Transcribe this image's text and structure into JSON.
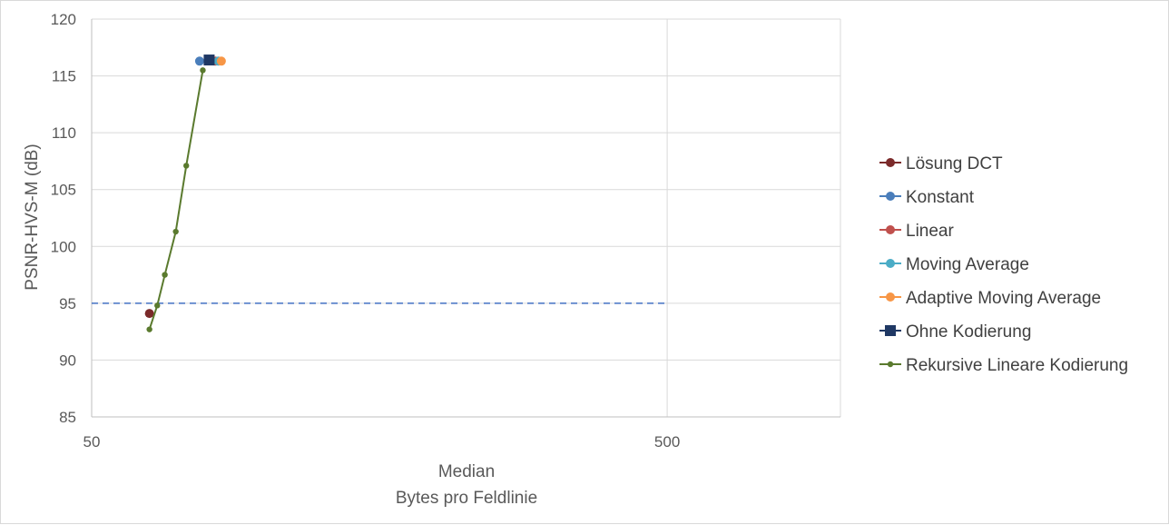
{
  "chart_data": {
    "type": "scatter",
    "title": "",
    "xlabel": [
      "Median",
      "Bytes pro Feldlinie"
    ],
    "ylabel": "PSNR-HVS-M (dB)",
    "xscale": "log",
    "xlim": [
      50,
      1000
    ],
    "ylim": [
      85,
      120
    ],
    "x_ticks": [
      "50",
      "500"
    ],
    "y_ticks": [
      "85",
      "90",
      "95",
      "100",
      "105",
      "110",
      "115",
      "120"
    ],
    "grid": true,
    "legend_position": "right",
    "threshold_line": {
      "y": 95,
      "style": "dashed",
      "color": "#4472c4"
    },
    "series": [
      {
        "name": "Lösung DCT",
        "marker": "circle",
        "color": "#7b2a2a",
        "points": [
          [
            63,
            94.1
          ]
        ]
      },
      {
        "name": "Konstant",
        "marker": "circle",
        "color": "#4a7ebb",
        "points": [
          [
            77,
            116.3
          ]
        ]
      },
      {
        "name": "Linear",
        "marker": "circle",
        "color": "#c0504d",
        "points": [
          [
            82,
            116.3
          ]
        ]
      },
      {
        "name": "Moving Average",
        "marker": "circle",
        "color": "#4bacc6",
        "points": [
          [
            83,
            116.3
          ]
        ]
      },
      {
        "name": "Adaptive Moving Average",
        "marker": "circle",
        "color": "#f79646",
        "points": [
          [
            84,
            116.3
          ]
        ]
      },
      {
        "name": "Ohne Kodierung",
        "marker": "square",
        "color": "#1f3864",
        "points": [
          [
            80,
            116.4
          ]
        ]
      },
      {
        "name": "Rekursive Lineare Kodierung",
        "marker": "line-dot",
        "color": "#5a7a2e",
        "points": [
          [
            63,
            92.7
          ],
          [
            65,
            94.8
          ],
          [
            67,
            97.5
          ],
          [
            70,
            101.3
          ],
          [
            73,
            107.1
          ],
          [
            78,
            115.5
          ]
        ]
      }
    ]
  }
}
